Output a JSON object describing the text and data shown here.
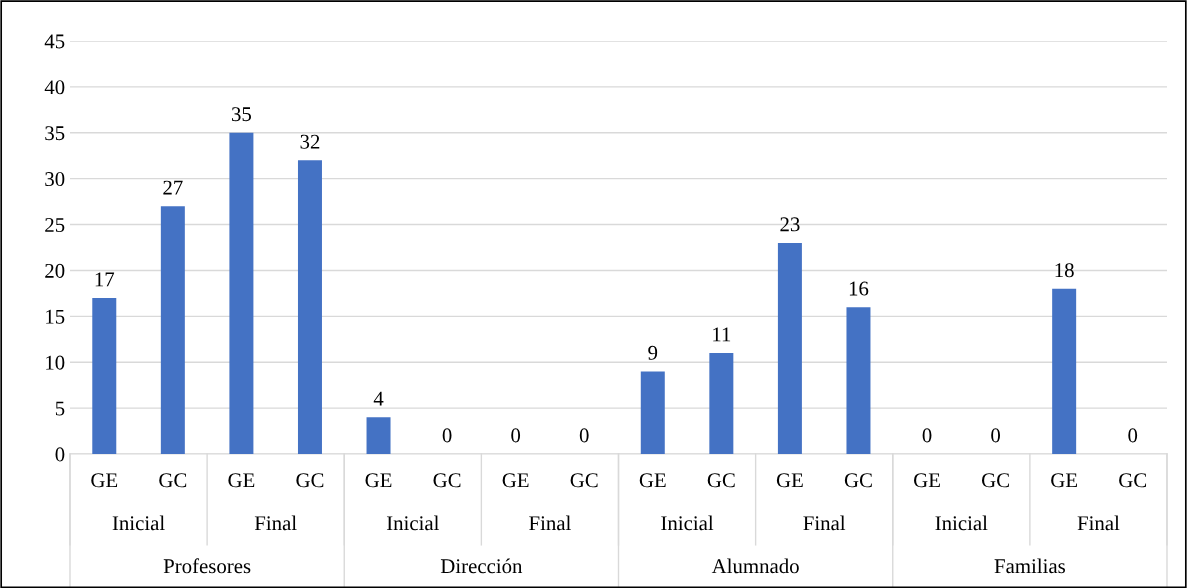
{
  "chart_data": {
    "type": "bar",
    "categories": [
      "GE",
      "GC",
      "GE",
      "GC",
      "GE",
      "GC",
      "GE",
      "GC",
      "GE",
      "GC",
      "GE",
      "GC",
      "GE",
      "GC",
      "GE",
      "GC"
    ],
    "values": [
      17,
      27,
      35,
      32,
      4,
      0,
      0,
      0,
      9,
      11,
      23,
      16,
      0,
      0,
      18,
      0
    ],
    "color": "#4472c4",
    "ylim": [
      0,
      45
    ],
    "yticks": [
      0,
      5,
      10,
      15,
      20,
      25,
      30,
      35,
      40,
      45
    ],
    "grid": "y",
    "data_labels": true,
    "annotations": [
      "Inicial",
      "Final",
      "Inicial",
      "Final",
      "Inicial",
      "Final",
      "Inicial",
      "Final",
      "Profesores",
      "Dirección",
      "Alumnado",
      "Familias"
    ]
  }
}
